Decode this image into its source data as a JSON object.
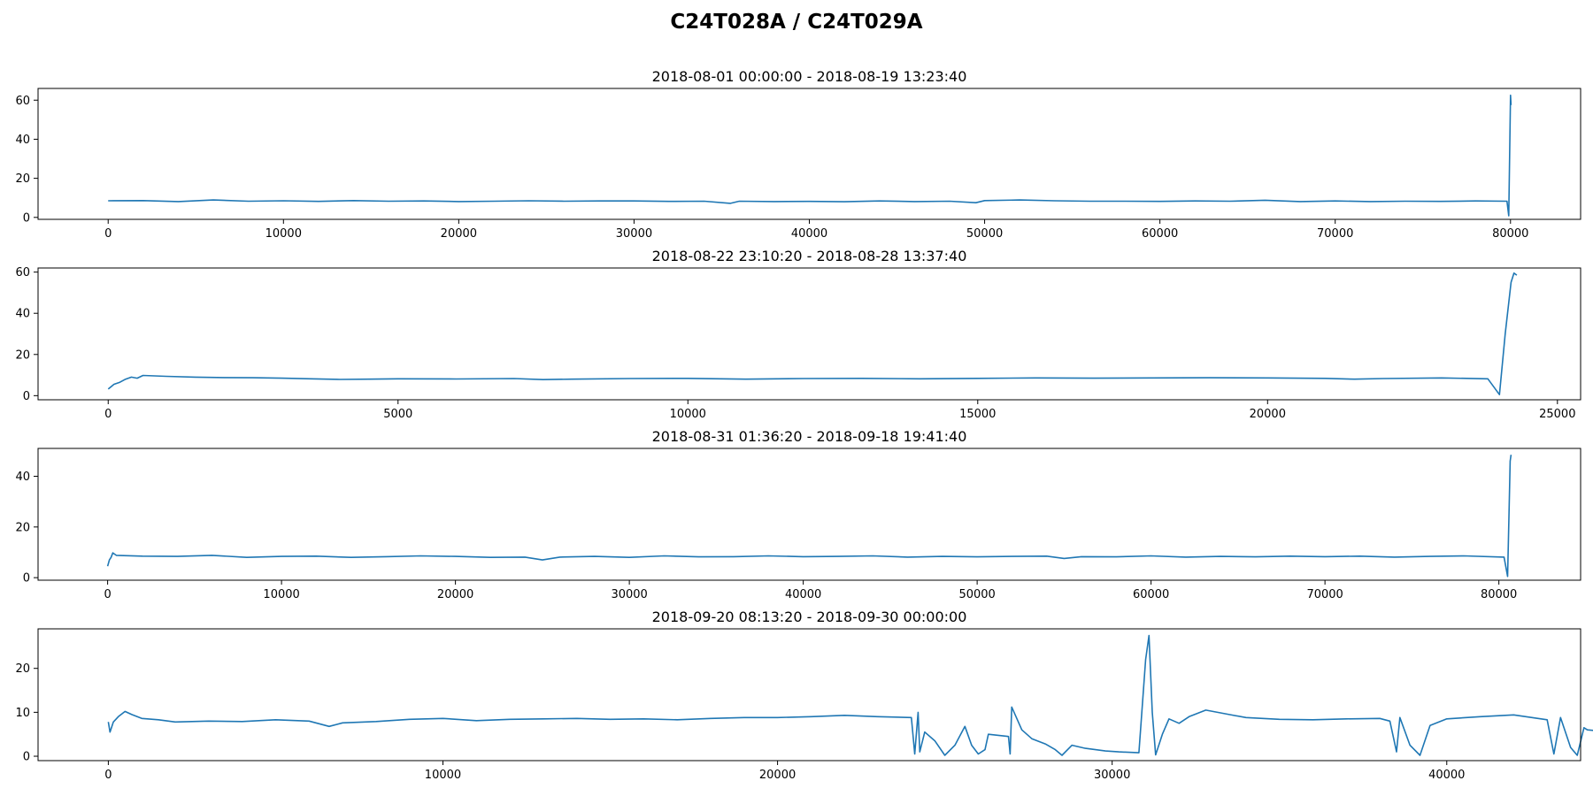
{
  "suptitle": "C24T028A / C24T029A",
  "colors": {
    "line": "#1f77b4",
    "axes": "#000000",
    "background": "#ffffff"
  },
  "chart_data": [
    {
      "type": "line",
      "title": "2018-08-01 00:00:00 - 2018-08-19 13:23:40",
      "xlabel": "",
      "ylabel": "",
      "xlim": [
        -4000,
        84000
      ],
      "ylim": [
        -1,
        66
      ],
      "xticks": [
        0,
        10000,
        20000,
        30000,
        40000,
        50000,
        60000,
        70000,
        80000
      ],
      "yticks": [
        0,
        20,
        40,
        60
      ],
      "grid": false,
      "series": [
        {
          "points": [
            [
              0,
              8.5
            ],
            [
              2000,
              8.6
            ],
            [
              4000,
              8.1
            ],
            [
              6000,
              8.9
            ],
            [
              8000,
              8.3
            ],
            [
              10000,
              8.5
            ],
            [
              12000,
              8.2
            ],
            [
              14000,
              8.6
            ],
            [
              16000,
              8.3
            ],
            [
              18000,
              8.4
            ],
            [
              20000,
              8.1
            ],
            [
              22000,
              8.3
            ],
            [
              24000,
              8.5
            ],
            [
              26000,
              8.3
            ],
            [
              28000,
              8.4
            ],
            [
              30000,
              8.4
            ],
            [
              32000,
              8.2
            ],
            [
              34000,
              8.3
            ],
            [
              35500,
              7.2
            ],
            [
              36000,
              8.3
            ],
            [
              38000,
              8.1
            ],
            [
              40000,
              8.2
            ],
            [
              42000,
              8.0
            ],
            [
              44000,
              8.4
            ],
            [
              46000,
              8.1
            ],
            [
              48000,
              8.3
            ],
            [
              49500,
              7.5
            ],
            [
              50000,
              8.6
            ],
            [
              52000,
              8.9
            ],
            [
              54000,
              8.5
            ],
            [
              56000,
              8.3
            ],
            [
              58000,
              8.3
            ],
            [
              60000,
              8.2
            ],
            [
              62000,
              8.4
            ],
            [
              64000,
              8.3
            ],
            [
              66000,
              8.8
            ],
            [
              68000,
              8.1
            ],
            [
              70000,
              8.4
            ],
            [
              72000,
              8.1
            ],
            [
              74000,
              8.3
            ],
            [
              76000,
              8.2
            ],
            [
              78000,
              8.4
            ],
            [
              79800,
              8.3
            ],
            [
              79900,
              0.8
            ],
            [
              80000,
              62.5
            ],
            [
              80030,
              57.5
            ]
          ]
        }
      ]
    },
    {
      "type": "line",
      "title": "2018-08-22 23:10:20 - 2018-08-28 13:37:40",
      "xlabel": "",
      "ylabel": "",
      "xlim": [
        -1210,
        25400
      ],
      "ylim": [
        -2,
        62
      ],
      "xticks": [
        0,
        5000,
        10000,
        15000,
        20000,
        25000
      ],
      "yticks": [
        0,
        20,
        40,
        60
      ],
      "grid": false,
      "series": [
        {
          "points": [
            [
              0,
              3.2
            ],
            [
              100,
              5.5
            ],
            [
              200,
              6.5
            ],
            [
              300,
              8.0
            ],
            [
              400,
              9.0
            ],
            [
              500,
              8.5
            ],
            [
              600,
              9.8
            ],
            [
              1000,
              9.4
            ],
            [
              1500,
              9.0
            ],
            [
              2000,
              8.8
            ],
            [
              2500,
              8.7
            ],
            [
              3000,
              8.5
            ],
            [
              3500,
              8.2
            ],
            [
              4000,
              7.9
            ],
            [
              4500,
              8.0
            ],
            [
              5000,
              8.2
            ],
            [
              6000,
              8.1
            ],
            [
              7000,
              8.3
            ],
            [
              7500,
              7.8
            ],
            [
              8000,
              8.0
            ],
            [
              9000,
              8.3
            ],
            [
              10000,
              8.4
            ],
            [
              11000,
              8.0
            ],
            [
              12000,
              8.3
            ],
            [
              13000,
              8.4
            ],
            [
              14000,
              8.2
            ],
            [
              15000,
              8.4
            ],
            [
              16000,
              8.6
            ],
            [
              17000,
              8.5
            ],
            [
              18000,
              8.6
            ],
            [
              19000,
              8.7
            ],
            [
              20000,
              8.6
            ],
            [
              21000,
              8.4
            ],
            [
              21500,
              8.0
            ],
            [
              22000,
              8.3
            ],
            [
              23000,
              8.6
            ],
            [
              23800,
              8.2
            ],
            [
              24000,
              0.5
            ],
            [
              24100,
              30
            ],
            [
              24200,
              55
            ],
            [
              24250,
              59.5
            ],
            [
              24300,
              58.5
            ]
          ]
        }
      ]
    },
    {
      "type": "line",
      "title": "2018-08-31 01:36:20 - 2018-09-18 19:41:40",
      "xlabel": "",
      "ylabel": "",
      "xlim": [
        -4000,
        84700
      ],
      "ylim": [
        -1,
        51
      ],
      "xticks": [
        0,
        10000,
        20000,
        30000,
        40000,
        50000,
        60000,
        70000,
        80000
      ],
      "yticks": [
        0,
        20,
        40
      ],
      "grid": false,
      "series": [
        {
          "points": [
            [
              0,
              4.5
            ],
            [
              100,
              7.0
            ],
            [
              200,
              8.0
            ],
            [
              300,
              9.8
            ],
            [
              500,
              8.8
            ],
            [
              2000,
              8.5
            ],
            [
              4000,
              8.4
            ],
            [
              6000,
              8.8
            ],
            [
              8000,
              8.0
            ],
            [
              10000,
              8.4
            ],
            [
              12000,
              8.5
            ],
            [
              14000,
              8.0
            ],
            [
              16000,
              8.3
            ],
            [
              18000,
              8.6
            ],
            [
              20000,
              8.4
            ],
            [
              22000,
              8.0
            ],
            [
              24000,
              8.1
            ],
            [
              25000,
              7.0
            ],
            [
              26000,
              8.1
            ],
            [
              28000,
              8.4
            ],
            [
              30000,
              8.0
            ],
            [
              32000,
              8.6
            ],
            [
              34000,
              8.2
            ],
            [
              36000,
              8.3
            ],
            [
              38000,
              8.6
            ],
            [
              40000,
              8.3
            ],
            [
              42000,
              8.4
            ],
            [
              44000,
              8.6
            ],
            [
              46000,
              8.1
            ],
            [
              48000,
              8.4
            ],
            [
              50000,
              8.2
            ],
            [
              52000,
              8.4
            ],
            [
              54000,
              8.5
            ],
            [
              55000,
              7.6
            ],
            [
              56000,
              8.3
            ],
            [
              58000,
              8.2
            ],
            [
              60000,
              8.6
            ],
            [
              62000,
              8.1
            ],
            [
              64000,
              8.4
            ],
            [
              66000,
              8.2
            ],
            [
              68000,
              8.5
            ],
            [
              70000,
              8.3
            ],
            [
              72000,
              8.5
            ],
            [
              74000,
              8.1
            ],
            [
              76000,
              8.4
            ],
            [
              78000,
              8.6
            ],
            [
              80300,
              8.1
            ],
            [
              80500,
              0.5
            ],
            [
              80600,
              30
            ],
            [
              80650,
              46
            ],
            [
              80700,
              48.5
            ]
          ]
        }
      ]
    },
    {
      "type": "line",
      "title": "2018-09-20 08:13:20 - 2018-09-30 00:00:00",
      "xlabel": "",
      "ylabel": "",
      "xlim": [
        -2100,
        44000
      ],
      "ylim": [
        -1,
        29
      ],
      "xticks": [
        0,
        10000,
        20000,
        30000,
        40000
      ],
      "yticks": [
        0,
        10,
        20
      ],
      "grid": false,
      "series": [
        {
          "points": [
            [
              0,
              7.8
            ],
            [
              50,
              5.5
            ],
            [
              150,
              7.8
            ],
            [
              300,
              9.0
            ],
            [
              500,
              10.2
            ],
            [
              700,
              9.5
            ],
            [
              1000,
              8.6
            ],
            [
              1500,
              8.3
            ],
            [
              2000,
              7.8
            ],
            [
              3000,
              8.0
            ],
            [
              4000,
              7.9
            ],
            [
              5000,
              8.3
            ],
            [
              6000,
              8.0
            ],
            [
              6600,
              6.8
            ],
            [
              7000,
              7.6
            ],
            [
              8000,
              7.9
            ],
            [
              9000,
              8.4
            ],
            [
              10000,
              8.6
            ],
            [
              11000,
              8.1
            ],
            [
              12000,
              8.4
            ],
            [
              13000,
              8.5
            ],
            [
              14000,
              8.6
            ],
            [
              15000,
              8.4
            ],
            [
              16000,
              8.5
            ],
            [
              17000,
              8.3
            ],
            [
              18000,
              8.6
            ],
            [
              19000,
              8.8
            ],
            [
              20000,
              8.8
            ],
            [
              21000,
              9.0
            ],
            [
              22000,
              9.3
            ],
            [
              23000,
              9.0
            ],
            [
              24000,
              8.8
            ],
            [
              24100,
              0.5
            ],
            [
              24200,
              10.0
            ],
            [
              24250,
              1.0
            ],
            [
              24400,
              5.5
            ],
            [
              24700,
              3.5
            ],
            [
              25000,
              0.2
            ],
            [
              25300,
              2.5
            ],
            [
              25600,
              6.8
            ],
            [
              25800,
              2.5
            ],
            [
              26000,
              0.5
            ],
            [
              26200,
              1.5
            ],
            [
              26300,
              5.0
            ],
            [
              26900,
              4.5
            ],
            [
              26950,
              0.5
            ],
            [
              27000,
              11.2
            ],
            [
              27300,
              6.0
            ],
            [
              27600,
              4.0
            ],
            [
              28000,
              2.8
            ],
            [
              28300,
              1.5
            ],
            [
              28500,
              0.2
            ],
            [
              28800,
              2.5
            ],
            [
              29200,
              1.8
            ],
            [
              29500,
              1.5
            ],
            [
              29800,
              1.2
            ],
            [
              30200,
              1.0
            ],
            [
              30800,
              0.8
            ],
            [
              31000,
              22.0
            ],
            [
              31100,
              27.5
            ],
            [
              31200,
              10.0
            ],
            [
              31300,
              0.3
            ],
            [
              31500,
              5.0
            ],
            [
              31700,
              8.5
            ],
            [
              32000,
              7.5
            ],
            [
              32300,
              9.0
            ],
            [
              32800,
              10.5
            ],
            [
              33500,
              9.5
            ],
            [
              34000,
              8.8
            ],
            [
              35000,
              8.4
            ],
            [
              36000,
              8.3
            ],
            [
              37000,
              8.5
            ],
            [
              38000,
              8.6
            ],
            [
              38300,
              8.0
            ],
            [
              38500,
              1.0
            ],
            [
              38600,
              8.8
            ],
            [
              38900,
              2.5
            ],
            [
              39200,
              0.2
            ],
            [
              39500,
              7.0
            ],
            [
              40000,
              8.5
            ],
            [
              41000,
              9.0
            ],
            [
              42000,
              9.4
            ],
            [
              43000,
              8.3
            ],
            [
              43200,
              0.5
            ],
            [
              43400,
              8.8
            ],
            [
              43700,
              2.0
            ],
            [
              43900,
              0.2
            ],
            [
              44100,
              6.5
            ],
            [
              44200,
              6.0
            ],
            [
              44500,
              5.8
            ]
          ]
        }
      ]
    }
  ]
}
